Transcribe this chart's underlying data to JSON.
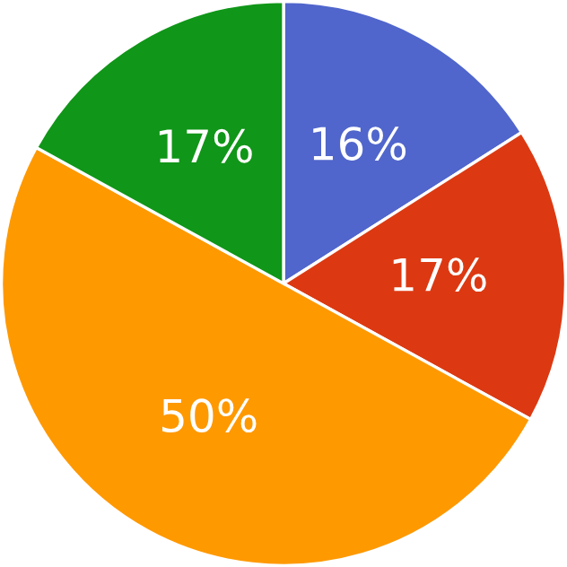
{
  "chart_data": {
    "type": "pie",
    "categories": [
      null,
      null,
      null,
      null
    ],
    "values": [
      16,
      17,
      50,
      17
    ],
    "colors": [
      "#5066cc",
      "#dc3912",
      "#ff9900",
      "#109618"
    ],
    "value_labels": [
      "16%",
      "17%",
      "50%",
      "17%"
    ]
  }
}
